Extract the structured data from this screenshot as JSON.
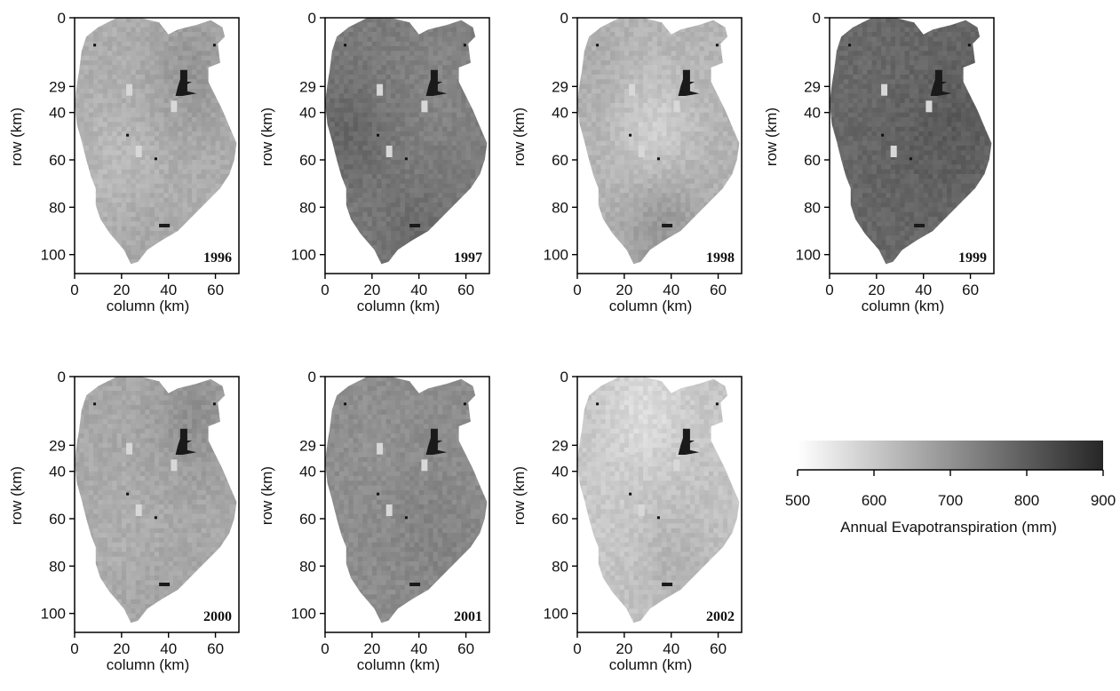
{
  "chart_data": {
    "type": "heatmap",
    "title": "",
    "xlabel": "column (km)",
    "ylabel": "row (km)",
    "xlim": [
      0,
      70
    ],
    "ylim": [
      108,
      0
    ],
    "x_ticks": [
      0,
      20,
      40,
      60
    ],
    "y_ticks": [
      0,
      29,
      40,
      60,
      80,
      100
    ],
    "grid": false,
    "panels": [
      {
        "year": "1996",
        "mean_et_mm": 650,
        "gradient": "mixed"
      },
      {
        "year": "1997",
        "mean_et_mm": 740,
        "gradient": "darker-west-and-south"
      },
      {
        "year": "1998",
        "mean_et_mm": 640,
        "gradient": "lighter-center-darker-south"
      },
      {
        "year": "1999",
        "mean_et_mm": 780,
        "gradient": "uniform-dark"
      },
      {
        "year": "2000",
        "mean_et_mm": 660,
        "gradient": "darker-northeast"
      },
      {
        "year": "2001",
        "mean_et_mm": 710,
        "gradient": "uniform-medium-dark"
      },
      {
        "year": "2002",
        "mean_et_mm": 610,
        "gradient": "lighter-north"
      }
    ],
    "colorbar": {
      "label": "Annual Evapotranspiration (mm)",
      "min": 500,
      "max": 900,
      "ticks": [
        500,
        600,
        700,
        800,
        900
      ],
      "color_low": "#ffffff",
      "color_high": "#262626"
    }
  }
}
